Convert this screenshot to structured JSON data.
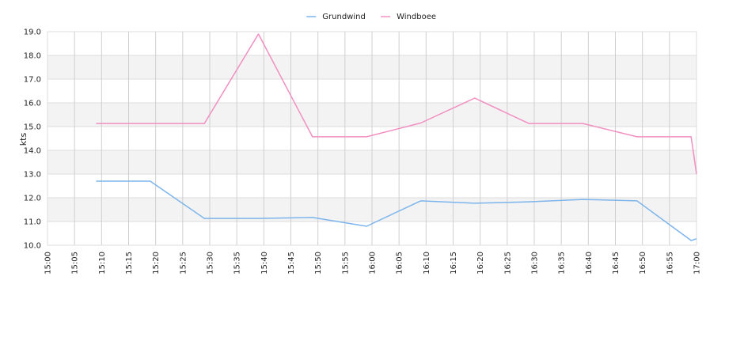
{
  "chart_data": {
    "type": "line",
    "title": "",
    "xlabel": "",
    "ylabel": "kts",
    "ylim": [
      10.0,
      19.0
    ],
    "y_ticks": [
      "10.0",
      "11.0",
      "12.0",
      "13.0",
      "14.0",
      "15.0",
      "16.0",
      "17.0",
      "18.0",
      "19.0"
    ],
    "x_ticks": [
      "15:00",
      "15:05",
      "15:10",
      "15:15",
      "15:20",
      "15:25",
      "15:30",
      "15:35",
      "15:40",
      "15:45",
      "15:50",
      "15:55",
      "16:00",
      "16:05",
      "16:10",
      "16:15",
      "16:20",
      "16:25",
      "16:30",
      "16:35",
      "16:40",
      "16:45",
      "16:50",
      "16:55",
      "17:00"
    ],
    "xlim": [
      "15:00",
      "17:00"
    ],
    "grid": true,
    "banded_background": true,
    "legend_position": "top-center",
    "series": [
      {
        "name": "Grundwind",
        "color": "#7cb5ec",
        "points": [
          [
            "15:09",
            12.7
          ],
          [
            "15:19",
            12.7
          ],
          [
            "15:29",
            11.13
          ],
          [
            "15:39",
            11.13
          ],
          [
            "15:49",
            11.17
          ],
          [
            "15:59",
            10.8
          ],
          [
            "16:09",
            11.87
          ],
          [
            "16:19",
            11.77
          ],
          [
            "16:29",
            11.83
          ],
          [
            "16:39",
            11.93
          ],
          [
            "16:49",
            11.87
          ],
          [
            "16:59",
            10.2
          ],
          [
            "17:00",
            10.27
          ]
        ]
      },
      {
        "name": "Windboee",
        "color": "#f28fc0",
        "points": [
          [
            "15:09",
            15.13
          ],
          [
            "15:29",
            15.13
          ],
          [
            "15:39",
            18.9
          ],
          [
            "15:49",
            14.57
          ],
          [
            "15:59",
            14.57
          ],
          [
            "16:09",
            15.15
          ],
          [
            "16:19",
            16.2
          ],
          [
            "16:29",
            15.13
          ],
          [
            "16:39",
            15.13
          ],
          [
            "16:49",
            14.57
          ],
          [
            "16:59",
            14.57
          ],
          [
            "17:00",
            13.0
          ]
        ]
      }
    ]
  }
}
